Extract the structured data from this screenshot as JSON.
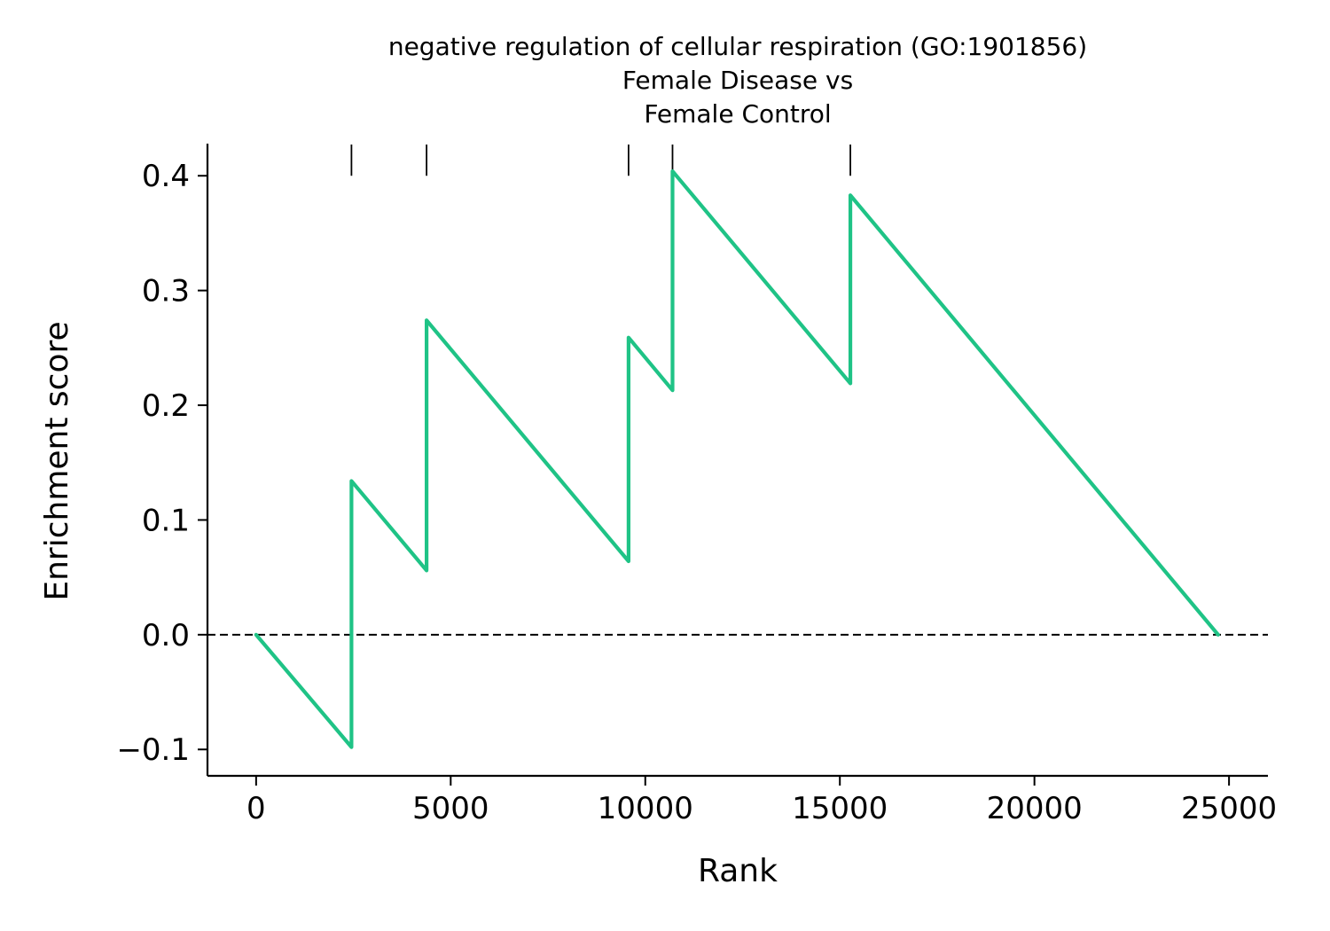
{
  "chart_data": {
    "type": "line",
    "title_lines": [
      "negative regulation of cellular respiration (GO:1901856)",
      "Female Disease vs",
      "Female Control"
    ],
    "xlabel": "Rank",
    "ylabel": "Enrichment score",
    "xlim": [
      -1250,
      26000
    ],
    "ylim": [
      -0.123,
      0.428
    ],
    "x_ticks": [
      0,
      5000,
      10000,
      15000,
      20000,
      25000
    ],
    "x_tick_labels": [
      "0",
      "5000",
      "10000",
      "15000",
      "20000",
      "25000"
    ],
    "y_ticks": [
      -0.1,
      0.0,
      0.1,
      0.2,
      0.3,
      0.4
    ],
    "y_tick_labels": [
      "−0.1",
      "0.0",
      "0.1",
      "0.2",
      "0.3",
      "0.4"
    ],
    "zero_line": {
      "y": 0.0,
      "style": "dashed",
      "color": "#000000"
    },
    "hit_positions": [
      2450,
      4380,
      9570,
      10700,
      15270
    ],
    "series": [
      {
        "color": "#1fc386",
        "points": [
          [
            0,
            0.0
          ],
          [
            2450,
            -0.098
          ],
          [
            2450,
            0.134
          ],
          [
            4380,
            0.056
          ],
          [
            4380,
            0.274
          ],
          [
            9570,
            0.064
          ],
          [
            9570,
            0.259
          ],
          [
            10700,
            0.213
          ],
          [
            10700,
            0.404
          ],
          [
            15270,
            0.219
          ],
          [
            15270,
            0.383
          ],
          [
            24720,
            0.0
          ]
        ]
      }
    ],
    "grid": false,
    "legend": "none"
  }
}
